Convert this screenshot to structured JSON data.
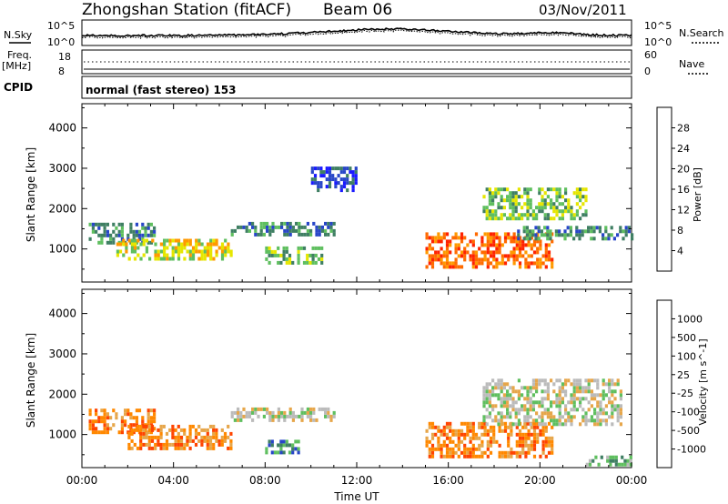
{
  "header": {
    "station": "Zhongshan Station (fitACF)",
    "beam": "Beam 06",
    "date": "03/Nov/2011"
  },
  "strips": {
    "nsky_label": "N.Sky",
    "nsearch_label": "N.Search",
    "noise_tick_top": "10^5",
    "noise_tick_bottom": "10^0",
    "freq_label": "Freq.",
    "freq_unit": "[MHz]",
    "freq_tick_top": "18",
    "freq_tick_bottom": "8",
    "nave_label": "Nave",
    "nave_tick_top": "60",
    "nave_tick_bottom": "0",
    "cpid_label": "CPID",
    "cpid_text": "normal (fast stereo) 153"
  },
  "chart_data": [
    {
      "type": "heatmap",
      "name": "power",
      "ylabel": "Slant Range [km]",
      "xlabel": "",
      "ylim": [
        180,
        4600
      ],
      "yticks": [
        "1000",
        "2000",
        "3000",
        "4000"
      ],
      "ytick_values": [
        1000,
        2000,
        3000,
        4000
      ],
      "colorbar": {
        "label": "Power [dB]",
        "ticks": [
          "4",
          "8",
          "12",
          "16",
          "20",
          "24",
          "28"
        ],
        "colors": [
          "#1a1aff",
          "#2846c8",
          "#3f7f63",
          "#5fbf5f",
          "#e6e600",
          "#ff9900",
          "#ff6a00",
          "#ff2200"
        ]
      },
      "regions": [
        {
          "x": [
            0.3,
            3.2
          ],
          "y": [
            1200,
            1700
          ],
          "level": 2
        },
        {
          "x": [
            1.5,
            6.5
          ],
          "y": [
            800,
            1300
          ],
          "level": 4
        },
        {
          "x": [
            6.5,
            11.0
          ],
          "y": [
            1400,
            1700
          ],
          "level": 2
        },
        {
          "x": [
            8.0,
            10.5
          ],
          "y": [
            700,
            1100
          ],
          "level": 3
        },
        {
          "x": [
            10.0,
            12.0
          ],
          "y": [
            2500,
            3100
          ],
          "level": 1
        },
        {
          "x": [
            15.0,
            20.5
          ],
          "y": [
            600,
            1500
          ],
          "level": 6
        },
        {
          "x": [
            17.5,
            22.0
          ],
          "y": [
            1800,
            2600
          ],
          "level": 3
        },
        {
          "x": [
            19.0,
            24.0
          ],
          "y": [
            1300,
            1600
          ],
          "level": 2
        }
      ]
    },
    {
      "type": "heatmap",
      "name": "velocity",
      "ylabel": "Slant Range [km]",
      "xlabel": "Time UT",
      "ylim": [
        180,
        4600
      ],
      "yticks": [
        "1000",
        "2000",
        "3000",
        "4000"
      ],
      "ytick_values": [
        1000,
        2000,
        3000,
        4000
      ],
      "xticks": [
        "00:00",
        "04:00",
        "08:00",
        "12:00",
        "16:00",
        "20:00",
        "00:00"
      ],
      "xtick_values": [
        0,
        4,
        8,
        12,
        16,
        20,
        24
      ],
      "colorbar": {
        "label": "Velocity [m s^-1]",
        "ticks": [
          "1000",
          "500",
          "100",
          "25",
          "-25",
          "-100",
          "-500",
          "-1000"
        ],
        "colors": [
          "#1a1aff",
          "#2846c8",
          "#3f7f63",
          "#5fbf5f",
          "#bbbbbb",
          "#e6a64a",
          "#ff8800",
          "#ff4400",
          "#ff0000"
        ]
      },
      "regions": [
        {
          "x": [
            0.3,
            3.2
          ],
          "y": [
            1100,
            1700
          ],
          "level": 6
        },
        {
          "x": [
            2.0,
            6.5
          ],
          "y": [
            700,
            1300
          ],
          "level": 6
        },
        {
          "x": [
            6.5,
            11.0
          ],
          "y": [
            1400,
            1700
          ],
          "level": 4
        },
        {
          "x": [
            8.0,
            9.5
          ],
          "y": [
            600,
            900
          ],
          "level": 2
        },
        {
          "x": [
            15.0,
            20.5
          ],
          "y": [
            500,
            1400
          ],
          "level": 6
        },
        {
          "x": [
            17.5,
            23.5
          ],
          "y": [
            1300,
            2400
          ],
          "level": 4
        },
        {
          "x": [
            22.0,
            24.0
          ],
          "y": [
            300,
            500
          ],
          "level": 3
        }
      ]
    }
  ]
}
